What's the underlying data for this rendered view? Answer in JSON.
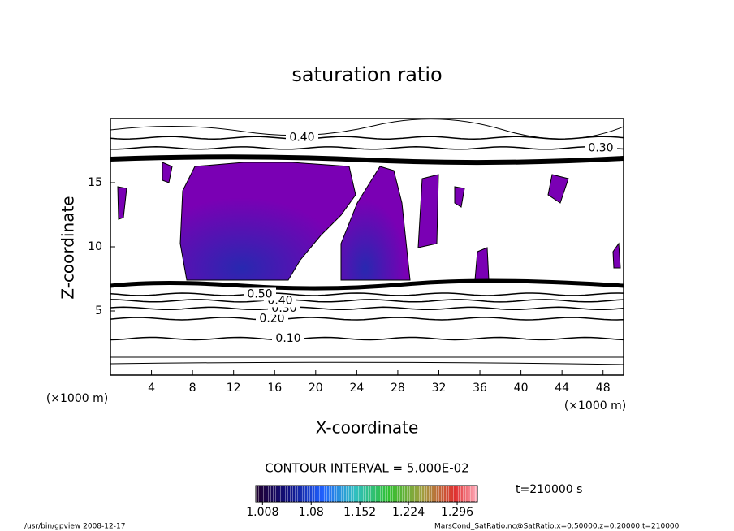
{
  "chart_data": {
    "type": "contour",
    "title": "saturation ratio",
    "xlabel": "X-coordinate",
    "ylabel": "Z-coordinate",
    "x_unit_label": "(×1000 m)",
    "xlim": [
      0,
      50
    ],
    "ylim": [
      0,
      20
    ],
    "xticks": [
      4,
      8,
      12,
      16,
      20,
      24,
      28,
      32,
      36,
      40,
      44,
      48
    ],
    "yticks": [
      5,
      10,
      15
    ],
    "contours": [
      {
        "level": {
          "value": 0.1,
          "label": "0.10"
        },
        "z": 2.85
      },
      {
        "level": {
          "value": 0.2,
          "label": "0.20"
        },
        "z": 4.4
      },
      {
        "level": {
          "value": 0.3,
          "label": "0.30"
        },
        "z": 5.2
      },
      {
        "level": {
          "value": 0.4,
          "label": "0.40"
        },
        "z": 5.8
      },
      {
        "level": {
          "value": 0.5,
          "label": "0.50"
        },
        "z": 6.3
      },
      {
        "level": {
          "value": 0.4,
          "label": "0.40"
        },
        "z": 18.5
      },
      {
        "level": {
          "value": 0.3,
          "label": "0.30"
        },
        "z": 17.7
      }
    ],
    "contour_interval_text": "CONTOUR INTERVAL = 5.000E-02",
    "colorbar": {
      "clim": [
        0.998,
        1.326
      ],
      "ticks": [
        1.008,
        1.08,
        1.152,
        1.224,
        1.296
      ]
    },
    "time_label": "t=210000 s",
    "footer_left": "/usr/bin/gpview   2008-12-17",
    "footer_right": "MarsCond_SatRatio.nc@SatRatio,x=0:50000,z=0:20000,t=210000"
  }
}
